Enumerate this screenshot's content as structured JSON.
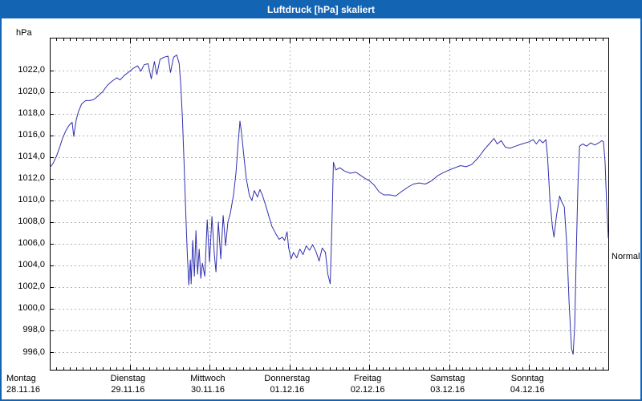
{
  "window": {
    "title": "Luftdruck [hPa] skaliert"
  },
  "colors": {
    "titlebar": "#1464b4",
    "line": "#3030b0",
    "grid": "#b3b3b3",
    "frame": "#000000",
    "background": "#ffffff"
  },
  "chart_data": {
    "type": "line",
    "title": "Luftdruck [hPa] skaliert",
    "ylabel": "hPa",
    "ylim": [
      994.3,
      1025.0
    ],
    "grid": "dashed",
    "yticks": [
      1022,
      1020,
      1018,
      1016,
      1014,
      1012,
      1010,
      1008,
      1006,
      1004,
      1002,
      1000,
      998,
      996
    ],
    "ytick_labels": [
      "1022,0",
      "1020,0",
      "1018,0",
      "1016,0",
      "1014,0",
      "1012,0",
      "1010,0",
      "1008,0",
      "1006,0",
      "1004,0",
      "1002,0",
      "1000,0",
      "998,0",
      "996,0"
    ],
    "x_range_days": 7,
    "x_days": [
      {
        "name": "Montag",
        "date": "28.11.16"
      },
      {
        "name": "Dienstag",
        "date": "29.11.16"
      },
      {
        "name": "Mittwoch",
        "date": "30.11.16"
      },
      {
        "name": "Donnerstag",
        "date": "01.12.16"
      },
      {
        "name": "Freitag",
        "date": "02.12.16"
      },
      {
        "name": "Samstag",
        "date": "03.12.16"
      },
      {
        "name": "Sonntag",
        "date": "04.12.16"
      }
    ],
    "normal_marker": {
      "label": "Normal",
      "value": 1004.8
    },
    "series": [
      {
        "name": "Luftdruck",
        "unit": "hPa",
        "points": [
          [
            0.0,
            1013.0
          ],
          [
            0.04,
            1013.4
          ],
          [
            0.08,
            1014.0
          ],
          [
            0.12,
            1014.8
          ],
          [
            0.16,
            1015.7
          ],
          [
            0.2,
            1016.4
          ],
          [
            0.24,
            1016.9
          ],
          [
            0.28,
            1017.2
          ],
          [
            0.3,
            1015.9
          ],
          [
            0.33,
            1017.4
          ],
          [
            0.36,
            1018.2
          ],
          [
            0.4,
            1018.9
          ],
          [
            0.45,
            1019.2
          ],
          [
            0.5,
            1019.2
          ],
          [
            0.55,
            1019.3
          ],
          [
            0.6,
            1019.6
          ],
          [
            0.66,
            1020.0
          ],
          [
            0.72,
            1020.6
          ],
          [
            0.78,
            1021.0
          ],
          [
            0.84,
            1021.3
          ],
          [
            0.88,
            1021.1
          ],
          [
            0.93,
            1021.5
          ],
          [
            1.0,
            1021.9
          ],
          [
            1.05,
            1022.2
          ],
          [
            1.1,
            1022.4
          ],
          [
            1.14,
            1021.9
          ],
          [
            1.18,
            1022.5
          ],
          [
            1.23,
            1022.6
          ],
          [
            1.27,
            1021.2
          ],
          [
            1.31,
            1022.8
          ],
          [
            1.34,
            1021.6
          ],
          [
            1.38,
            1023.0
          ],
          [
            1.43,
            1023.2
          ],
          [
            1.48,
            1023.3
          ],
          [
            1.51,
            1021.8
          ],
          [
            1.55,
            1023.2
          ],
          [
            1.59,
            1023.4
          ],
          [
            1.62,
            1022.6
          ],
          [
            1.64,
            1020.6
          ],
          [
            1.66,
            1017.6
          ],
          [
            1.68,
            1013.6
          ],
          [
            1.7,
            1009.2
          ],
          [
            1.72,
            1005.2
          ],
          [
            1.74,
            1002.2
          ],
          [
            1.76,
            1004.5
          ],
          [
            1.77,
            1002.3
          ],
          [
            1.79,
            1006.3
          ],
          [
            1.81,
            1003.0
          ],
          [
            1.83,
            1007.2
          ],
          [
            1.85,
            1003.2
          ],
          [
            1.87,
            1005.5
          ],
          [
            1.89,
            1002.8
          ],
          [
            1.91,
            1004.2
          ],
          [
            1.94,
            1003.0
          ],
          [
            1.97,
            1008.2
          ],
          [
            2.0,
            1004.3
          ],
          [
            2.03,
            1008.5
          ],
          [
            2.06,
            1005.0
          ],
          [
            2.08,
            1003.4
          ],
          [
            2.11,
            1008.0
          ],
          [
            2.14,
            1004.6
          ],
          [
            2.17,
            1008.6
          ],
          [
            2.2,
            1005.8
          ],
          [
            2.23,
            1008.0
          ],
          [
            2.26,
            1008.8
          ],
          [
            2.3,
            1010.5
          ],
          [
            2.33,
            1012.5
          ],
          [
            2.36,
            1015.5
          ],
          [
            2.38,
            1017.3
          ],
          [
            2.4,
            1016.2
          ],
          [
            2.43,
            1014.0
          ],
          [
            2.46,
            1012.0
          ],
          [
            2.5,
            1010.4
          ],
          [
            2.53,
            1010.0
          ],
          [
            2.56,
            1010.9
          ],
          [
            2.6,
            1010.3
          ],
          [
            2.63,
            1011.0
          ],
          [
            2.66,
            1010.5
          ],
          [
            2.7,
            1009.6
          ],
          [
            2.74,
            1008.6
          ],
          [
            2.78,
            1007.6
          ],
          [
            2.83,
            1006.9
          ],
          [
            2.87,
            1006.4
          ],
          [
            2.91,
            1006.6
          ],
          [
            2.94,
            1006.3
          ],
          [
            2.97,
            1007.1
          ],
          [
            2.99,
            1005.6
          ],
          [
            3.02,
            1004.6
          ],
          [
            3.05,
            1005.2
          ],
          [
            3.09,
            1004.7
          ],
          [
            3.13,
            1005.5
          ],
          [
            3.17,
            1005.0
          ],
          [
            3.21,
            1005.8
          ],
          [
            3.25,
            1005.4
          ],
          [
            3.29,
            1005.9
          ],
          [
            3.33,
            1005.3
          ],
          [
            3.37,
            1004.4
          ],
          [
            3.41,
            1005.6
          ],
          [
            3.45,
            1005.2
          ],
          [
            3.48,
            1003.2
          ],
          [
            3.51,
            1002.3
          ],
          [
            3.53,
            1007.5
          ],
          [
            3.55,
            1013.5
          ],
          [
            3.58,
            1012.8
          ],
          [
            3.63,
            1013.0
          ],
          [
            3.69,
            1012.7
          ],
          [
            3.76,
            1012.5
          ],
          [
            3.83,
            1012.6
          ],
          [
            3.89,
            1012.3
          ],
          [
            3.95,
            1012.0
          ],
          [
            4.0,
            1011.8
          ],
          [
            4.06,
            1011.4
          ],
          [
            4.12,
            1010.8
          ],
          [
            4.18,
            1010.5
          ],
          [
            4.26,
            1010.5
          ],
          [
            4.33,
            1010.4
          ],
          [
            4.4,
            1010.8
          ],
          [
            4.48,
            1011.2
          ],
          [
            4.55,
            1011.5
          ],
          [
            4.62,
            1011.6
          ],
          [
            4.7,
            1011.5
          ],
          [
            4.78,
            1011.8
          ],
          [
            4.86,
            1012.3
          ],
          [
            4.94,
            1012.6
          ],
          [
            5.0,
            1012.8
          ],
          [
            5.07,
            1013.0
          ],
          [
            5.14,
            1013.2
          ],
          [
            5.21,
            1013.1
          ],
          [
            5.28,
            1013.3
          ],
          [
            5.36,
            1013.9
          ],
          [
            5.44,
            1014.7
          ],
          [
            5.5,
            1015.2
          ],
          [
            5.56,
            1015.7
          ],
          [
            5.6,
            1015.2
          ],
          [
            5.65,
            1015.5
          ],
          [
            5.7,
            1014.9
          ],
          [
            5.76,
            1014.8
          ],
          [
            5.83,
            1015.0
          ],
          [
            5.91,
            1015.2
          ],
          [
            6.0,
            1015.4
          ],
          [
            6.05,
            1015.6
          ],
          [
            6.09,
            1015.2
          ],
          [
            6.13,
            1015.6
          ],
          [
            6.17,
            1015.3
          ],
          [
            6.21,
            1015.6
          ],
          [
            6.23,
            1014.0
          ],
          [
            6.26,
            1010.0
          ],
          [
            6.29,
            1007.6
          ],
          [
            6.31,
            1006.6
          ],
          [
            6.34,
            1008.5
          ],
          [
            6.38,
            1010.4
          ],
          [
            6.41,
            1009.8
          ],
          [
            6.44,
            1009.4
          ],
          [
            6.47,
            1006.0
          ],
          [
            6.5,
            1000.5
          ],
          [
            6.53,
            996.3
          ],
          [
            6.55,
            995.8
          ],
          [
            6.57,
            998.5
          ],
          [
            6.59,
            1005.5
          ],
          [
            6.61,
            1011.5
          ],
          [
            6.63,
            1015.0
          ],
          [
            6.67,
            1015.2
          ],
          [
            6.72,
            1015.0
          ],
          [
            6.77,
            1015.3
          ],
          [
            6.82,
            1015.1
          ],
          [
            6.87,
            1015.3
          ],
          [
            6.91,
            1015.5
          ],
          [
            6.93,
            1015.4
          ],
          [
            6.95,
            1013.5
          ],
          [
            6.97,
            1009.5
          ],
          [
            6.99,
            1006.5
          ]
        ]
      }
    ]
  }
}
